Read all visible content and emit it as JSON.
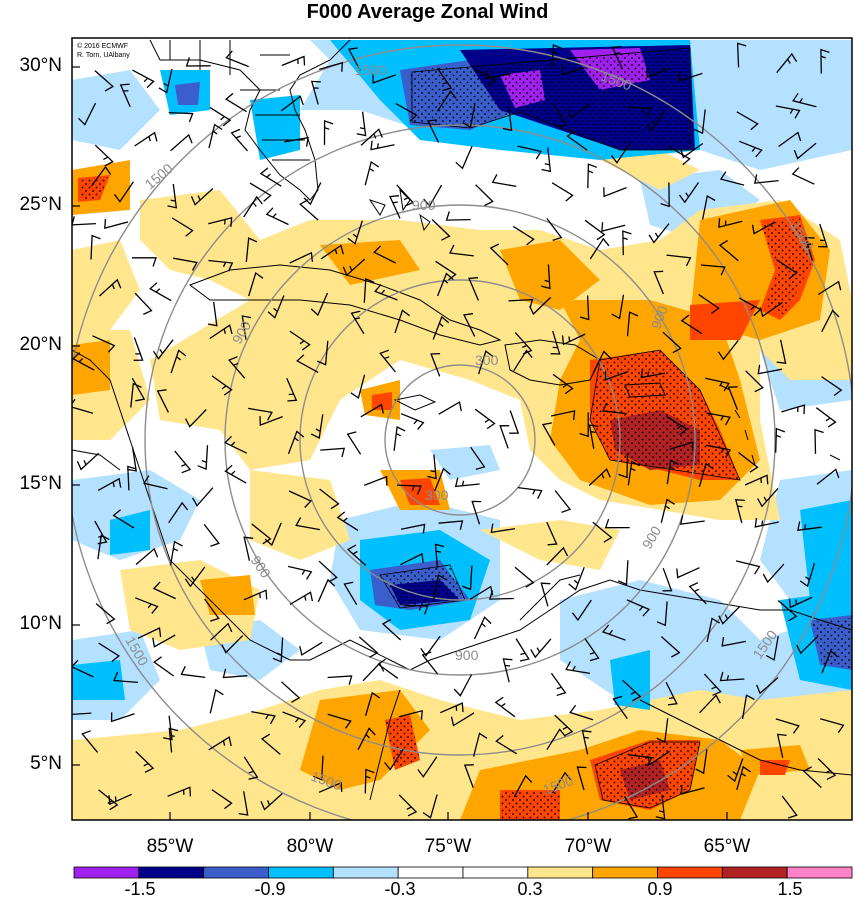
{
  "title": "F000 Average Zonal Wind",
  "credit": {
    "line1": "© 2016 ECMWF",
    "line2": "R. Torn, UAlbany"
  },
  "lat_labels": [
    "30°N",
    "25°N",
    "20°N",
    "15°N",
    "10°N",
    "5°N"
  ],
  "lon_labels": [
    "85°W",
    "80°W",
    "75°W",
    "70°W",
    "65°W"
  ],
  "colorbar": {
    "colors": [
      "#a020f0",
      "#00008b",
      "#3a5fcd",
      "#00bfff",
      "#b4e1ff",
      "#ffffff",
      "#ffffff",
      "#ffe68c",
      "#ffa500",
      "#ff4500",
      "#b22222",
      "#ff82c8"
    ],
    "labels": [
      "-1.5",
      "-0.9",
      "-0.3",
      "0.3",
      "0.9",
      "1.5"
    ]
  },
  "range_rings": {
    "labels": [
      "300",
      "900",
      "1500"
    ],
    "color": "#8c8c8c"
  },
  "colors": {
    "coast": "#000000",
    "barb": "#000000",
    "frame": "#000000"
  }
}
